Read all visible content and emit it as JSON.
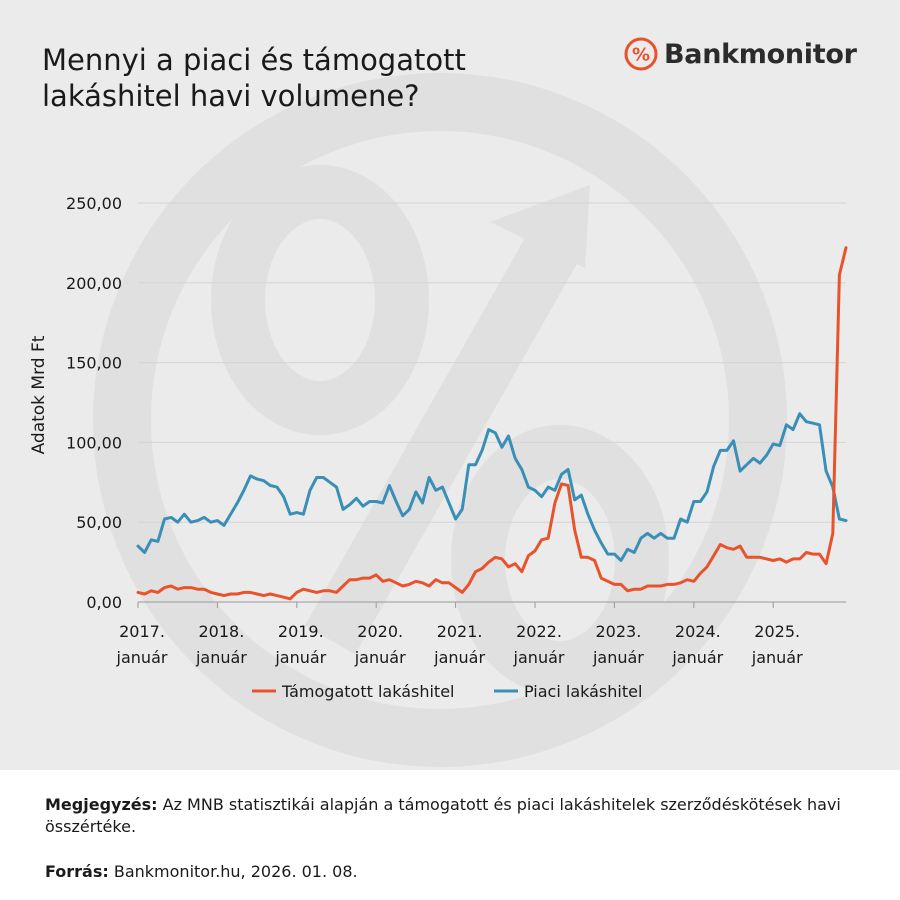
{
  "header": {
    "title_line1": "Mennyi a piaci és támogatott",
    "title_line2": "lakáshitel havi volumene?",
    "logo_text": "Bankmonitor",
    "logo_color": "#e8532b"
  },
  "footer": {
    "note_label": "Megjegyzés:",
    "note_text": " Az MNB statisztikái alapján a támogatott és piaci lakáshitelek szerződéskötések havi összértéke.",
    "source_label": "Forrás:",
    "source_text": " Bankmonitor.hu, 2026. 01. 08."
  },
  "chart_data": {
    "type": "line",
    "ylabel": "Adatok Mrd Ft",
    "ylim": [
      0,
      250
    ],
    "yticks": [
      0,
      50,
      100,
      150,
      200,
      250
    ],
    "ytick_labels": [
      "0,00",
      "50,00",
      "100,00",
      "150,00",
      "200,00",
      "250,00"
    ],
    "x_start": "2017-01",
    "x_end": "2025-11",
    "xticks": [
      {
        "line1": "2017.",
        "line2": "január"
      },
      {
        "line1": "2018.",
        "line2": "január"
      },
      {
        "line1": "2019.",
        "line2": "január"
      },
      {
        "line1": "2020.",
        "line2": "január"
      },
      {
        "line1": "2021.",
        "line2": "január"
      },
      {
        "line1": "2022.",
        "line2": "január"
      },
      {
        "line1": "2023.",
        "line2": "január"
      },
      {
        "line1": "2024.",
        "line2": "január"
      },
      {
        "line1": "2025.",
        "line2": "január"
      }
    ],
    "grid": true,
    "legend_position": "bottom",
    "series": [
      {
        "name": "Támogatott lakáshitel",
        "color": "#e8532b",
        "values": [
          6,
          5,
          7,
          6,
          9,
          10,
          8,
          9,
          9,
          8,
          8,
          6,
          5,
          4,
          5,
          5,
          6,
          6,
          5,
          4,
          5,
          4,
          3,
          2,
          6,
          8,
          7,
          6,
          7,
          7,
          6,
          10,
          14,
          14,
          15,
          15,
          17,
          13,
          14,
          12,
          10,
          11,
          13,
          12,
          10,
          14,
          12,
          12,
          9,
          6,
          11,
          19,
          21,
          25,
          28,
          27,
          22,
          24,
          19,
          29,
          32,
          39,
          40,
          62,
          74,
          73,
          45,
          28,
          28,
          26,
          15,
          13,
          11,
          11,
          7,
          8,
          8,
          10,
          10,
          10,
          11,
          11,
          12,
          14,
          13,
          18,
          22,
          29,
          36,
          34,
          33,
          35,
          28,
          28,
          28,
          27,
          26,
          27,
          25,
          27,
          27,
          31,
          30,
          30,
          24,
          43,
          205
        ]
      },
      {
        "name": "Piaci lakáshitel",
        "color": "#3a8fb7",
        "values": [
          35,
          31,
          39,
          38,
          52,
          53,
          50,
          55,
          50,
          51,
          53,
          50,
          51,
          48,
          55,
          62,
          70,
          79,
          77,
          76,
          73,
          72,
          66,
          55,
          56,
          55,
          70,
          78,
          78,
          75,
          72,
          58,
          61,
          65,
          60,
          63,
          63,
          62,
          73,
          63,
          54,
          58,
          69,
          62,
          78,
          70,
          72,
          62,
          52,
          58,
          86,
          86,
          95,
          108,
          106,
          97,
          104,
          90,
          83,
          72,
          70,
          66,
          72,
          70,
          80,
          83,
          64,
          67,
          55,
          45,
          37,
          30,
          30,
          26,
          33,
          31,
          40,
          43,
          40,
          43,
          40,
          40,
          52,
          50,
          63,
          63,
          69,
          85,
          95,
          95,
          101,
          82,
          86,
          90,
          87,
          92,
          99,
          98,
          111,
          108,
          118,
          113,
          112,
          111,
          82,
          72,
          52
        ]
      }
    ],
    "extra_points": {
      "Támogatott lakáshitel": 222,
      "Piaci lakáshitel": 51
    }
  }
}
